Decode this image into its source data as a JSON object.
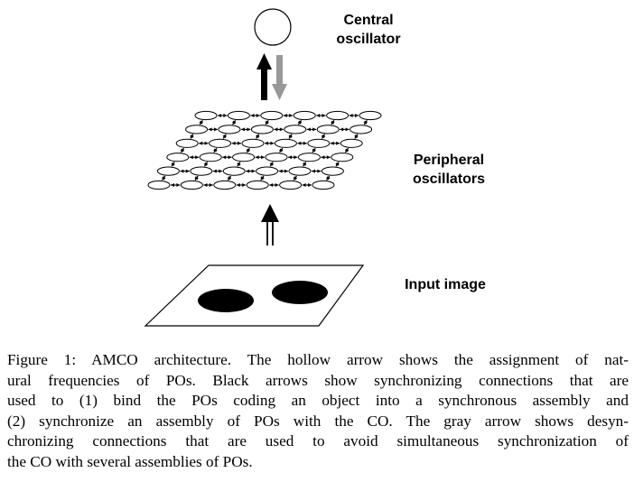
{
  "labels": {
    "central_line1": "Central",
    "central_line2": "oscillator",
    "peripheral_line1": "Peripheral",
    "peripheral_line2": "oscillators",
    "input": "Input image"
  },
  "caption": {
    "lines": [
      "Figure 1:  AMCO architecture. The hollow arrow shows the assignment of nat-",
      "ural frequencies of POs. Black arrows show synchronizing connections that are",
      "used to (1) bind the POs coding an object into a synchronous assembly and",
      "(2) synchronize an assembly of POs with the CO. The gray arrow shows desyn-",
      "chronizing connections that are used to avoid simultaneous synchronization of",
      "the CO with several assemblies of POs."
    ]
  },
  "colors": {
    "ink": "#000000",
    "gray_arrow": "#999999",
    "background": "#ffffff"
  }
}
